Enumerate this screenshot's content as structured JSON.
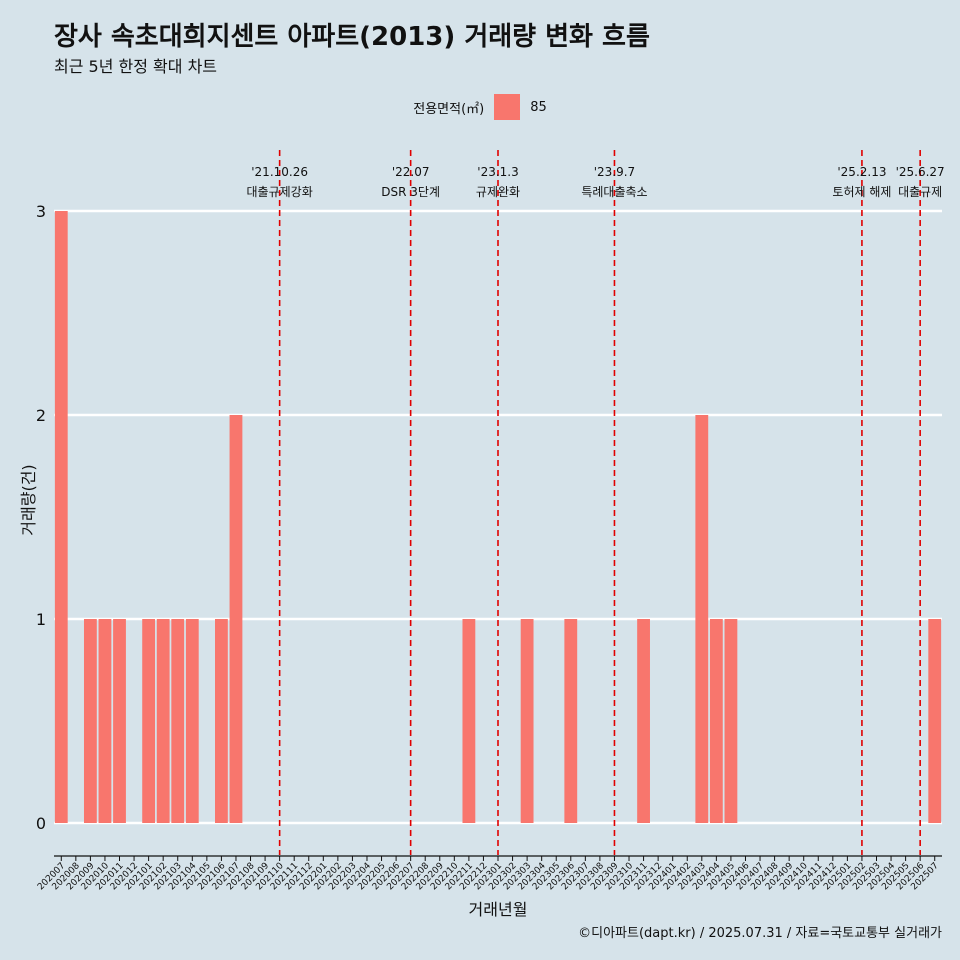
{
  "title": "장사 속초대희지센트 아파트(2013) 거래량 변화 흐름",
  "subtitle": "최근 5년 한정 확대 차트",
  "legend": {
    "title": "전용면적(㎡)",
    "item": "85"
  },
  "footer": "©디아파트(dapt.kr) / 2025.07.31 / 자료=국토교통부 실거래가",
  "colors": {
    "background": "#d6e3ea",
    "bar": "#f8766d",
    "event_line": "#e00000",
    "grid": "#ffffff"
  },
  "chart_data": {
    "type": "bar",
    "xlabel": "거래년월",
    "ylabel": "거래량(건)",
    "ylim": [
      0,
      3
    ],
    "yticks": [
      0,
      1,
      2,
      3
    ],
    "grid": true,
    "legend_position": "top",
    "categories": [
      "202007",
      "202008",
      "202009",
      "202010",
      "202011",
      "202012",
      "202101",
      "202102",
      "202103",
      "202104",
      "202105",
      "202106",
      "202107",
      "202108",
      "202109",
      "202110",
      "202111",
      "202112",
      "202201",
      "202202",
      "202203",
      "202204",
      "202205",
      "202206",
      "202207",
      "202208",
      "202209",
      "202210",
      "202211",
      "202212",
      "202301",
      "202302",
      "202303",
      "202304",
      "202305",
      "202306",
      "202307",
      "202308",
      "202309",
      "202310",
      "202311",
      "202312",
      "202401",
      "202402",
      "202403",
      "202404",
      "202405",
      "202406",
      "202407",
      "202408",
      "202409",
      "202410",
      "202411",
      "202412",
      "202501",
      "202502",
      "202503",
      "202504",
      "202505",
      "202506",
      "202507"
    ],
    "series": [
      {
        "name": "85",
        "values": [
          3,
          0,
          1,
          1,
          1,
          0,
          1,
          1,
          1,
          1,
          0,
          1,
          2,
          0,
          0,
          0,
          0,
          0,
          0,
          0,
          0,
          0,
          0,
          0,
          0,
          0,
          0,
          0,
          1,
          0,
          0,
          0,
          1,
          0,
          0,
          1,
          0,
          0,
          0,
          0,
          1,
          0,
          0,
          0,
          2,
          1,
          1,
          0,
          0,
          0,
          0,
          0,
          0,
          0,
          0,
          0,
          0,
          0,
          0,
          0,
          1
        ]
      }
    ],
    "events": [
      {
        "date": "'21.10.26",
        "label": "대출규제강화",
        "x": 15.5
      },
      {
        "date": "'22.07",
        "label": "DSR 3단계",
        "x": 24.5
      },
      {
        "date": "'23.1.3",
        "label": "규제완화",
        "x": 30.5
      },
      {
        "date": "'23.9.7",
        "label": "특례대출축소",
        "x": 38.5
      },
      {
        "date": "'25.2.13",
        "label": "토허제 해제",
        "x": 55.5
      },
      {
        "date": "'25.6.27",
        "label": "대출규제",
        "x": 59.5
      }
    ]
  }
}
